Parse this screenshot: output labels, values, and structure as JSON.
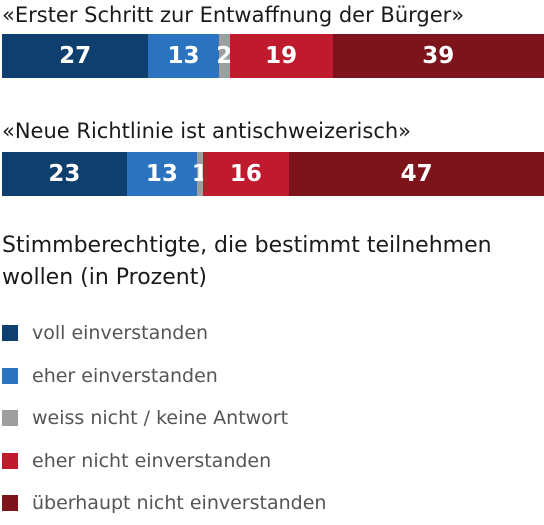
{
  "chart_data": {
    "type": "bar",
    "orientation": "horizontal",
    "stacked": true,
    "categories": [
      "«Erster Schritt zur Entwaffnung der Bürger»",
      "«Neue Richtlinie ist antischweizerisch»"
    ],
    "series": [
      {
        "name": "voll einverstanden",
        "color": "#0f3f6e",
        "values": [
          27,
          23
        ]
      },
      {
        "name": "eher einverstanden",
        "color": "#2b73be",
        "values": [
          13,
          13
        ]
      },
      {
        "name": "weiss nicht / keine Antwort",
        "color": "#9e9e9e",
        "values": [
          2,
          1
        ]
      },
      {
        "name": "eher nicht einverstanden",
        "color": "#c01a2e",
        "values": [
          19,
          16
        ]
      },
      {
        "name": "überhaupt nicht einverstanden",
        "color": "#7d141c",
        "values": [
          39,
          47
        ]
      }
    ],
    "legend_title": "Stimmberechtigte, die bestimmt teilnehmen wollen (in Prozent)",
    "legend_position": "bottom",
    "grid": false
  }
}
